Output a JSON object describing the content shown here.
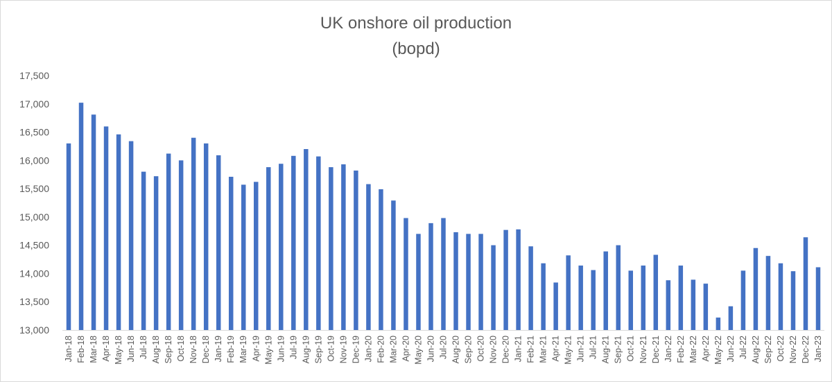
{
  "chart_data": {
    "type": "bar",
    "title": "UK onshore oil production",
    "subtitle": "(bopd)",
    "xlabel": "",
    "ylabel": "",
    "ylim": [
      13000,
      17500
    ],
    "yticks": [
      "13,000",
      "13,500",
      "14,000",
      "14,500",
      "15,000",
      "15,500",
      "16,000",
      "16,500",
      "17,000",
      "17,500"
    ],
    "ytick_values": [
      13000,
      13500,
      14000,
      14500,
      15000,
      15500,
      16000,
      16500,
      17000,
      17500
    ],
    "grid": false,
    "legend": "none",
    "bar_color": "#4472C4",
    "categories": [
      "Jan-18",
      "Feb-18",
      "Mar-18",
      "Apr-18",
      "May-18",
      "Jun-18",
      "Jul-18",
      "Aug-18",
      "Sep-18",
      "Oct-18",
      "Nov-18",
      "Dec-18",
      "Jan-19",
      "Feb-19",
      "Mar-19",
      "Apr-19",
      "May-19",
      "Jun-19",
      "Jul-19",
      "Aug-19",
      "Sep-19",
      "Oct-19",
      "Nov-19",
      "Dec-19",
      "Jan-20",
      "Feb-20",
      "Mar-20",
      "Apr-20",
      "May-20",
      "Jun-20",
      "Jul-20",
      "Aug-20",
      "Sep-20",
      "Oct-20",
      "Nov-20",
      "Dec-20",
      "Jan-21",
      "Feb-21",
      "Mar-21",
      "Apr-21",
      "May-21",
      "Jun-21",
      "Jul-21",
      "Aug-21",
      "Sep-21",
      "Oct-21",
      "Nov-21",
      "Dec-21",
      "Jan-22",
      "Feb-22",
      "Mar-22",
      "Apr-22",
      "May-22",
      "Jun-22",
      "Jul-22",
      "Aug-22",
      "Sep-22",
      "Oct-22",
      "Nov-22",
      "Dec-22",
      "Jan-23"
    ],
    "values": [
      16300,
      17020,
      16810,
      16600,
      16460,
      16340,
      15800,
      15720,
      16120,
      16000,
      16400,
      16300,
      16090,
      15710,
      15570,
      15620,
      15880,
      15940,
      16080,
      16200,
      16070,
      15880,
      15930,
      15820,
      15580,
      15490,
      15290,
      14980,
      14700,
      14890,
      14980,
      14730,
      14700,
      14700,
      14500,
      14770,
      14780,
      14480,
      14180,
      13840,
      14320,
      14140,
      14060,
      14390,
      14500,
      14050,
      14140,
      14330,
      13880,
      14140,
      13890,
      13820,
      13220,
      13420,
      14050,
      14450,
      14310,
      14180,
      14040,
      14640,
      14110
    ]
  }
}
